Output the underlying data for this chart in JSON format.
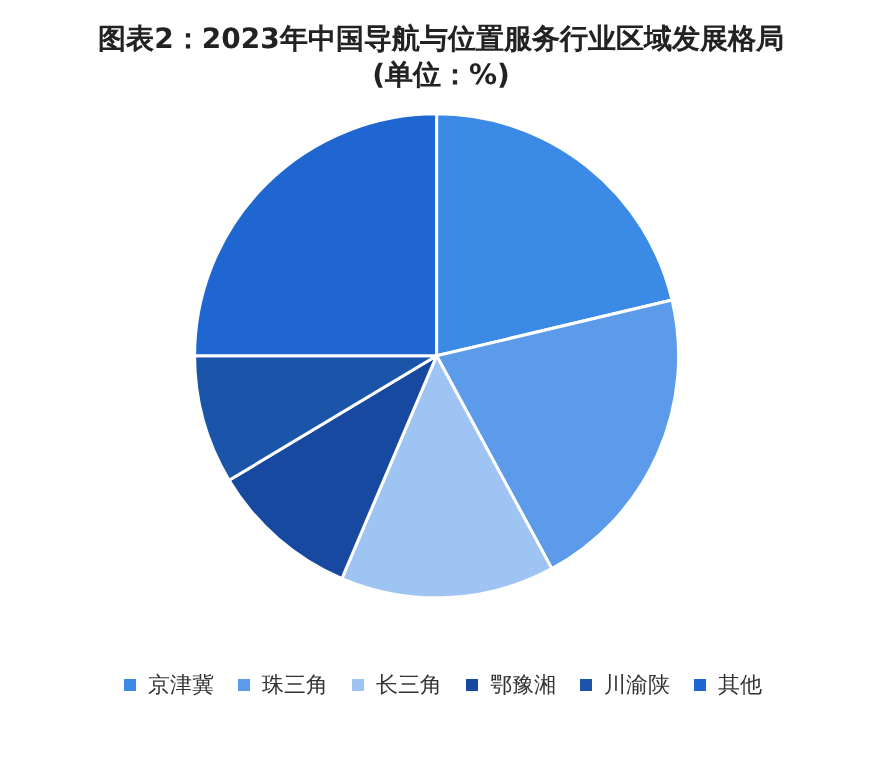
{
  "chart_data": {
    "type": "pie",
    "title": "图表2：2023年中国导航与位置服务行业区域发展格局\n(单位：%)",
    "categories": [
      "京津冀",
      "珠三角",
      "长三角",
      "鄂豫湘",
      "川渝陕",
      "其他"
    ],
    "values": [
      21.3,
      20.8,
      14.3,
      10.0,
      8.6,
      25.0
    ],
    "colors": [
      "#3a8ae6",
      "#5b9be9",
      "#9ec4f4",
      "#1849a0",
      "#1a55aa",
      "#1f66d1"
    ],
    "legend": "bottom"
  }
}
